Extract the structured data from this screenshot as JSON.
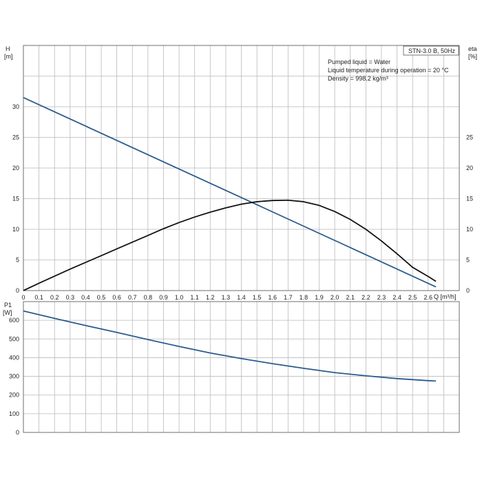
{
  "chart_data": [
    {
      "type": "line",
      "title": "STN-3.0 B, 50Hz",
      "info_lines": [
        "Pumped liquid = Water",
        "Liquid temperature during operation = 20 °C",
        "Density = 998.2 kg/m³"
      ],
      "xlabel": "Q [m³/h]",
      "ylabel_left": "H",
      "ylabel_left_unit": "[m]",
      "ylabel_right": "eta",
      "ylabel_right_unit": "[%]",
      "xlim": [
        0,
        2.8
      ],
      "ylim": [
        0,
        40
      ],
      "x_ticks": [
        0,
        0.1,
        0.2,
        0.3,
        0.4,
        0.5,
        0.6,
        0.7,
        0.8,
        0.9,
        1.0,
        1.1,
        1.2,
        1.3,
        1.4,
        1.5,
        1.6,
        1.7,
        1.8,
        1.9,
        2.0,
        2.1,
        2.2,
        2.3,
        2.4,
        2.5,
        2.6
      ],
      "x_tick_labels": [
        "0",
        "0.1",
        "0.2",
        "0.3",
        "0.4",
        "0.5",
        "0.6",
        "0.7",
        "0.8",
        "0.9",
        "1.0",
        "1.1",
        "1.2",
        "1.3",
        "1.4",
        "1.5",
        "1.6",
        "1.7",
        "1.8",
        "1.9",
        "2.0",
        "2.1",
        "2.2",
        "2.3",
        "2.4",
        "2.5",
        "2.6"
      ],
      "y_ticks_left": [
        "0",
        "5",
        "10",
        "15",
        "20",
        "25",
        "30"
      ],
      "y_ticks_right": [
        "0",
        "5",
        "10",
        "15",
        "20",
        "25"
      ],
      "series": [
        {
          "axis": "left",
          "color": "#2a5b8c",
          "x": [
            0,
            2.65
          ],
          "y": [
            31.5,
            0.6
          ]
        },
        {
          "axis": "right",
          "color": "#111111",
          "x": [
            0,
            0.1,
            0.2,
            0.3,
            0.4,
            0.5,
            0.6,
            0.7,
            0.8,
            0.9,
            1.0,
            1.1,
            1.2,
            1.3,
            1.4,
            1.5,
            1.6,
            1.7,
            1.8,
            1.9,
            2.0,
            2.1,
            2.2,
            2.3,
            2.4,
            2.5,
            2.6,
            2.65
          ],
          "y": [
            0,
            1.2,
            2.35,
            3.5,
            4.6,
            5.7,
            6.8,
            7.9,
            9.0,
            10.1,
            11.1,
            12.0,
            12.8,
            13.5,
            14.1,
            14.5,
            14.7,
            14.75,
            14.5,
            13.9,
            12.9,
            11.6,
            10.0,
            8.1,
            6.0,
            3.8,
            2.3,
            1.5
          ]
        }
      ]
    },
    {
      "type": "line",
      "ylabel": "P1",
      "ylabel_unit": "[W]",
      "xlim": [
        0,
        2.8
      ],
      "ylim": [
        0,
        700
      ],
      "y_ticks": [
        "0",
        "100",
        "200",
        "300",
        "400",
        "500",
        "600"
      ],
      "series": [
        {
          "color": "#2a5b8c",
          "x": [
            0,
            0.2,
            0.4,
            0.6,
            0.8,
            1.0,
            1.2,
            1.4,
            1.6,
            1.8,
            2.0,
            2.2,
            2.4,
            2.6,
            2.65
          ],
          "y": [
            650,
            610,
            572,
            535,
            497,
            460,
            425,
            395,
            368,
            343,
            320,
            303,
            288,
            277,
            275
          ]
        }
      ]
    }
  ]
}
